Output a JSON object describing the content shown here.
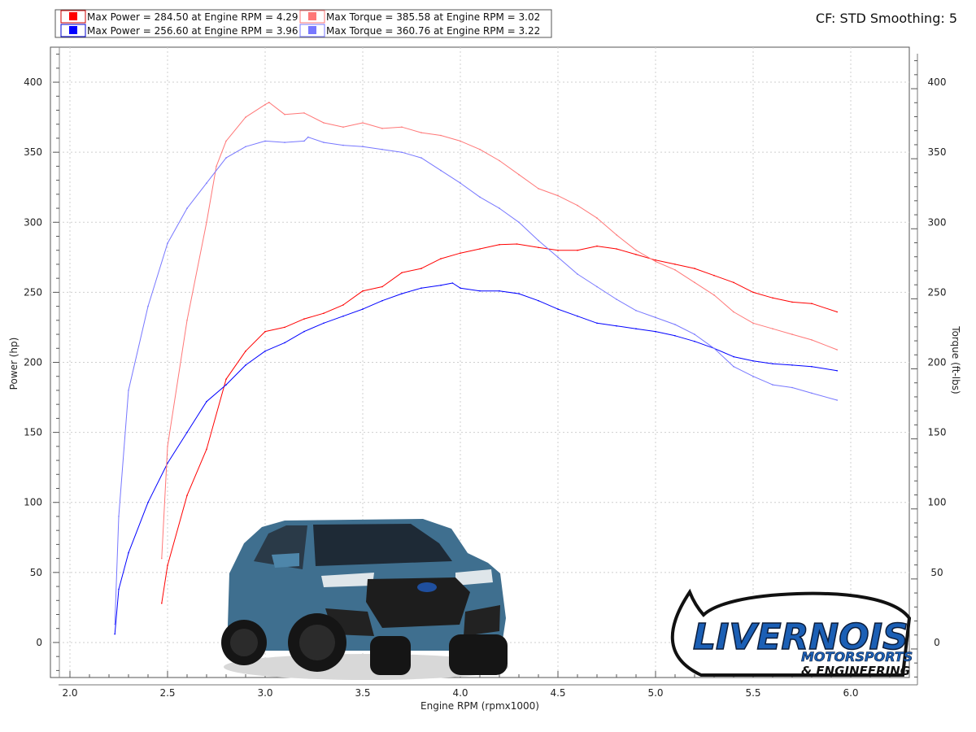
{
  "header": {
    "cf_text": "CF: STD Smoothing: 5"
  },
  "legend": [
    {
      "label": "Max Power = 284.50 at Engine RPM = 4.29",
      "color": "#ff0000"
    },
    {
      "label": "Max Power = 256.60 at Engine RPM = 3.96",
      "color": "#0000ff"
    },
    {
      "label": "Max Torque = 385.58 at Engine RPM = 3.02",
      "color": "#ff7777"
    },
    {
      "label": "Max Torque = 360.76 at Engine RPM = 3.22",
      "color": "#7777ff"
    }
  ],
  "logo": {
    "line1": "LIVERNOIS",
    "line2": "MOTORSPORTS",
    "line3": "& ENGINEERING"
  },
  "chart_data": {
    "type": "line",
    "xlabel": "Engine RPM (rpmx1000)",
    "ylabel": "Power (hp)",
    "y2label": "Torque (ft-lbs)",
    "xlim": [
      1.9,
      6.3
    ],
    "ylim": [
      -25,
      425
    ],
    "y2lim": [
      -25,
      425
    ],
    "xticks": [
      "2.0",
      "2.5",
      "3.0",
      "3.5",
      "4.0",
      "4.5",
      "5.0",
      "5.5",
      "6.0"
    ],
    "yticks": [
      "0",
      "50",
      "100",
      "150",
      "200",
      "250",
      "300",
      "350",
      "400"
    ],
    "grid": true,
    "series": [
      {
        "name": "Max Power = 284.50 at Engine RPM = 4.29",
        "axis": "left",
        "color": "#ff0000",
        "x": [
          2.47,
          2.5,
          2.6,
          2.7,
          2.8,
          2.9,
          3.0,
          3.1,
          3.2,
          3.3,
          3.4,
          3.5,
          3.6,
          3.7,
          3.8,
          3.9,
          4.0,
          4.1,
          4.2,
          4.29,
          4.4,
          4.5,
          4.6,
          4.7,
          4.8,
          4.9,
          5.0,
          5.1,
          5.2,
          5.3,
          5.4,
          5.5,
          5.6,
          5.7,
          5.8,
          5.93
        ],
        "values": [
          28,
          55,
          105,
          138,
          188,
          208,
          222,
          225,
          231,
          235,
          241,
          251,
          254,
          264,
          267,
          274,
          278,
          281,
          284,
          284.5,
          282,
          280,
          280,
          283,
          281,
          277,
          273,
          270,
          267,
          262,
          257,
          250,
          246,
          243,
          242,
          236
        ]
      },
      {
        "name": "Max Power = 256.60 at Engine RPM = 3.96",
        "axis": "left",
        "color": "#0000ff",
        "x": [
          2.23,
          2.25,
          2.3,
          2.4,
          2.5,
          2.6,
          2.7,
          2.8,
          2.9,
          3.0,
          3.1,
          3.2,
          3.3,
          3.4,
          3.5,
          3.6,
          3.7,
          3.8,
          3.9,
          3.96,
          4.0,
          4.1,
          4.2,
          4.3,
          4.4,
          4.5,
          4.6,
          4.7,
          4.8,
          4.9,
          5.0,
          5.1,
          5.2,
          5.3,
          5.4,
          5.5,
          5.6,
          5.7,
          5.8,
          5.93
        ],
        "values": [
          6,
          38,
          64,
          100,
          128,
          150,
          172,
          184,
          198,
          208,
          214,
          222,
          228,
          233,
          238,
          244,
          249,
          253,
          255,
          256.6,
          253,
          251,
          251,
          249,
          244,
          238,
          233,
          228,
          226,
          224,
          222,
          219,
          215,
          210,
          204,
          201,
          199,
          198,
          197,
          194
        ]
      },
      {
        "name": "Max Torque = 385.58 at Engine RPM = 3.02",
        "axis": "right",
        "color": "#ff7777",
        "x": [
          2.47,
          2.5,
          2.6,
          2.7,
          2.75,
          2.8,
          2.9,
          3.0,
          3.02,
          3.1,
          3.2,
          3.3,
          3.4,
          3.5,
          3.6,
          3.7,
          3.8,
          3.9,
          4.0,
          4.1,
          4.2,
          4.3,
          4.4,
          4.5,
          4.6,
          4.7,
          4.8,
          4.9,
          5.0,
          5.1,
          5.2,
          5.3,
          5.4,
          5.5,
          5.6,
          5.7,
          5.8,
          5.93
        ],
        "values": [
          60,
          140,
          230,
          300,
          340,
          358,
          375,
          384,
          385.6,
          377,
          378,
          371,
          368,
          371,
          367,
          368,
          364,
          362,
          358,
          352,
          344,
          334,
          324,
          319,
          312,
          303,
          291,
          280,
          272,
          266,
          257,
          248,
          236,
          228,
          224,
          220,
          216,
          209
        ]
      },
      {
        "name": "Max Torque = 360.76 at Engine RPM = 3.22",
        "axis": "right",
        "color": "#7777ff",
        "x": [
          2.23,
          2.25,
          2.3,
          2.4,
          2.5,
          2.6,
          2.7,
          2.8,
          2.9,
          3.0,
          3.1,
          3.2,
          3.22,
          3.3,
          3.4,
          3.5,
          3.6,
          3.7,
          3.8,
          3.9,
          4.0,
          4.1,
          4.2,
          4.3,
          4.4,
          4.5,
          4.6,
          4.7,
          4.8,
          4.9,
          5.0,
          5.1,
          5.2,
          5.3,
          5.4,
          5.5,
          5.6,
          5.7,
          5.8,
          5.93
        ],
        "values": [
          13,
          90,
          180,
          240,
          285,
          310,
          328,
          346,
          354,
          358,
          357,
          358,
          360.8,
          357,
          355,
          354,
          352,
          350,
          346,
          337,
          328,
          318,
          310,
          300,
          287,
          275,
          263,
          254,
          245,
          237,
          232,
          227,
          220,
          210,
          197,
          190,
          184,
          182,
          178,
          173
        ]
      }
    ]
  }
}
